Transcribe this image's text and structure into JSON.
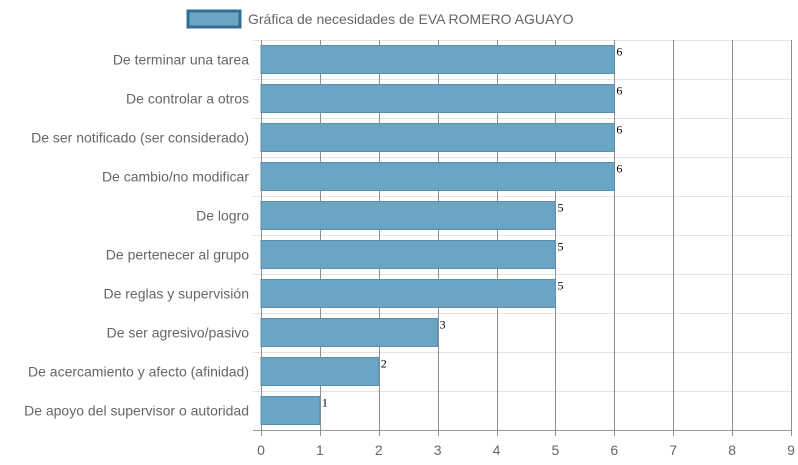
{
  "chart_data": {
    "type": "bar",
    "orientation": "horizontal",
    "categories": [
      "De terminar una tarea",
      "De controlar a otros",
      "De ser notificado (ser considerado)",
      "De cambio/no modificar",
      "De logro",
      "De pertenecer al grupo",
      "De reglas y supervisión",
      "De ser agresivo/pasivo",
      "De acercamiento y afecto (afinidad)",
      "De apoyo del supervisor o autoridad"
    ],
    "series": [
      {
        "name": "Gráfica de necesidades de EVA ROMERO AGUAYO",
        "values": [
          6,
          6,
          6,
          6,
          5,
          5,
          5,
          3,
          2,
          1
        ]
      }
    ],
    "x_ticks": [
      "0",
      "1",
      "2",
      "3",
      "4",
      "5",
      "6",
      "7",
      "8",
      "9"
    ],
    "xlim": [
      0,
      9
    ],
    "grid": true,
    "legend_position": "top",
    "data_labels": true,
    "colors": {
      "bar_fill": "#6ba5c4",
      "bar_stroke": "#5a8fab",
      "legend_border": "#2f6f96",
      "grid_horizontal": "#e3e3e3",
      "grid_vertical": "#8e8e8e",
      "text": "#666666",
      "data_label": "#000000"
    }
  }
}
